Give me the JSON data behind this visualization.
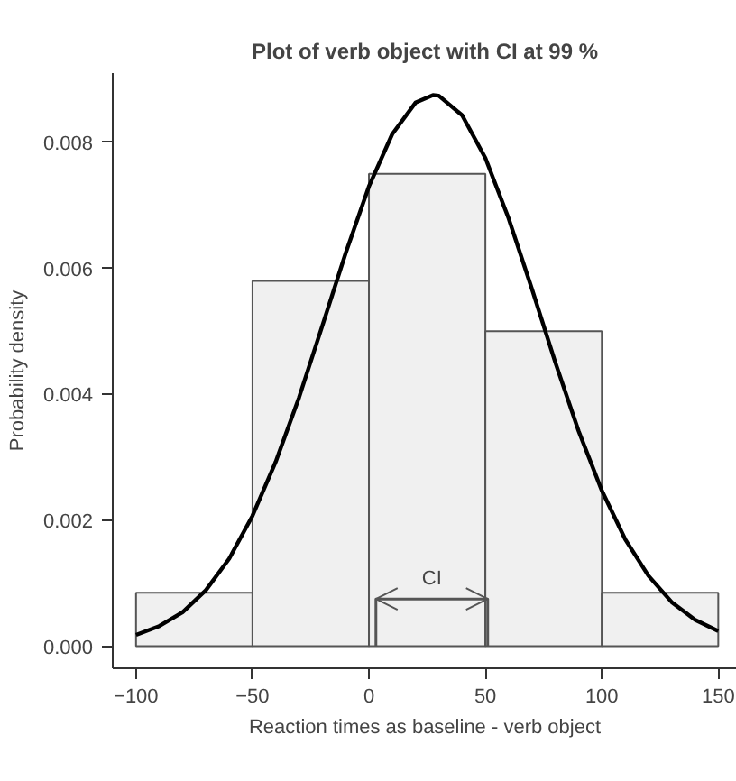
{
  "chart_data": {
    "type": "histogram",
    "title": "Plot of verb object with CI at 99 %",
    "xlabel": "Reaction times as baseline - verb object",
    "ylabel": "Probability density",
    "bins": [
      -100,
      -50,
      0,
      50,
      100,
      150
    ],
    "values": [
      0.00085,
      0.0058,
      0.0075,
      0.005,
      0.00085
    ],
    "color": "#f0f0f0",
    "series": [
      {
        "type": "line",
        "color": "#000000",
        "x": [
          -100,
          -90,
          -80,
          -70,
          -60,
          -50,
          -40,
          -30,
          -20,
          -10,
          0,
          10,
          20,
          27.5,
          30,
          40,
          50,
          60,
          70,
          80,
          90,
          100,
          110,
          120,
          130,
          140,
          150
        ],
        "values": [
          0.00018,
          0.00032,
          0.00054,
          0.00089,
          0.00139,
          0.00207,
          0.00293,
          0.00395,
          0.00509,
          0.00624,
          0.0073,
          0.00813,
          0.00863,
          0.00875,
          0.00874,
          0.00843,
          0.00775,
          0.00679,
          0.00567,
          0.00451,
          0.00342,
          0.00247,
          0.0017,
          0.00112,
          0.0007,
          0.00042,
          0.00024
        ]
      },
      {
        "type": "step",
        "color": "#555555",
        "x": [
          3,
          3,
          51,
          51
        ],
        "values": [
          0,
          0.00075,
          0.00075,
          0
        ]
      }
    ],
    "annotations": [
      "CI"
    ],
    "xlim": [
      -110,
      158
    ],
    "ylim": [
      -0.00035,
      0.0091
    ],
    "xticks": [
      -100,
      -50,
      0,
      50,
      100,
      150
    ],
    "yticks": [
      {
        "value": 0,
        "label": "0.000"
      },
      {
        "value": 0.002,
        "label": "0.002"
      },
      {
        "value": 0.004,
        "label": "0.004"
      },
      {
        "value": 0.006,
        "label": "0.006"
      },
      {
        "value": 0.008,
        "label": "0.008"
      }
    ],
    "grid": false
  }
}
